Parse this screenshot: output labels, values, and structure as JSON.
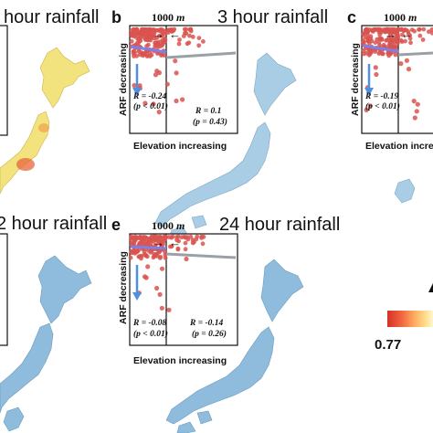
{
  "panels": [
    {
      "id": "a",
      "letter": "",
      "title": "hour rainfall"
    },
    {
      "id": "b",
      "letter": "b",
      "title": "3 hour rainfall"
    },
    {
      "id": "c",
      "letter": "c",
      "title": "",
      "ylabel": "ARF decreasing",
      "xlabel": "Elevation increas",
      "marker": "1000",
      "marker_unit": "m",
      "R_left": "R = -0.19",
      "p_left": "(p < 0.01)"
    },
    {
      "id": "d",
      "letter": "",
      "title": "2 hour rainfall"
    },
    {
      "id": "e",
      "letter": "e",
      "title": "24 hour rainfall"
    }
  ],
  "colorbar": {
    "min_label": "0.77",
    "colors": [
      "#d73027",
      "#f46d43",
      "#fdae61",
      "#fee090",
      "#ffffbf",
      "#e0f3f8"
    ]
  },
  "chart_data": [
    {
      "panel": "b",
      "type": "scatter",
      "title": "3 hour rainfall",
      "xlabel": "Elevation increasing",
      "ylabel": "ARF decreasing",
      "threshold_label": "1000",
      "threshold_unit": "m",
      "left": {
        "R": "R = -0.24",
        "p": "(p < 0.01)"
      },
      "right": {
        "R": "R = 0.1",
        "p": "(p = 0.43)"
      },
      "point_color": "#d9534f",
      "fit_color_left": "#7b7fe6",
      "fit_color_right": "#9aa0a6"
    },
    {
      "panel": "e",
      "type": "scatter",
      "title": "24 hour rainfall",
      "xlabel": "Elevation increasing",
      "ylabel": "ARF decreasing",
      "threshold_label": "1000",
      "threshold_unit": "m",
      "left": {
        "R": "R = -0.08",
        "p": "(p < 0.01)"
      },
      "right": {
        "R": "R = -0.14",
        "p": "(p = 0.26)"
      },
      "point_color": "#d9534f",
      "fit_color_left": "#7b7fe6",
      "fit_color_right": "#9aa0a6"
    }
  ]
}
